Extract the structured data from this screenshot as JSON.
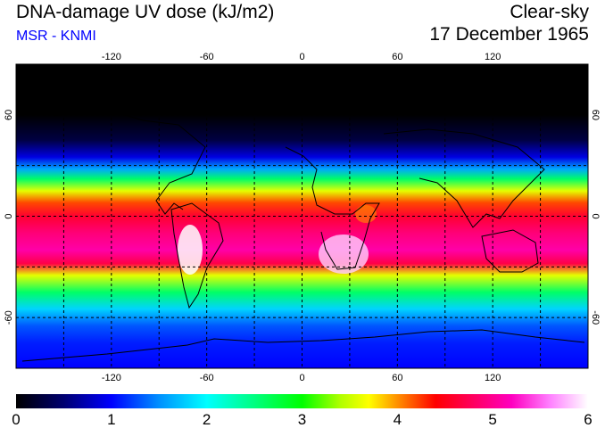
{
  "title": "DNA-damage UV dose (kJ/m2)",
  "subtitle": "MSR - KNMI",
  "subtitle_color": "#0000ff",
  "sky_condition": "Clear-sky",
  "date": "17 December 1965",
  "map": {
    "lon_ticks": [
      -120,
      -60,
      0,
      60,
      120
    ],
    "lat_ticks": [
      60,
      0,
      -60
    ],
    "lon_range": [
      -180,
      180
    ],
    "lat_range": [
      -90,
      90
    ],
    "grid_lons": [
      -150,
      -120,
      -90,
      -60,
      -30,
      0,
      30,
      60,
      90,
      120,
      150
    ],
    "grid_lats": [
      -60,
      -30,
      0,
      30,
      60
    ],
    "dose_by_latitude": [
      {
        "lat": 90,
        "dose": 0.0
      },
      {
        "lat": 60,
        "dose": 0.0
      },
      {
        "lat": 45,
        "dose": 0.3
      },
      {
        "lat": 35,
        "dose": 0.9
      },
      {
        "lat": 28,
        "dose": 1.6
      },
      {
        "lat": 22,
        "dose": 2.6
      },
      {
        "lat": 15,
        "dose": 3.6
      },
      {
        "lat": 8,
        "dose": 4.2
      },
      {
        "lat": 0,
        "dose": 4.6
      },
      {
        "lat": -10,
        "dose": 4.9
      },
      {
        "lat": -20,
        "dose": 5.1
      },
      {
        "lat": -28,
        "dose": 4.7
      },
      {
        "lat": -35,
        "dose": 3.6
      },
      {
        "lat": -45,
        "dose": 2.6
      },
      {
        "lat": -55,
        "dose": 1.8
      },
      {
        "lat": -65,
        "dose": 1.3
      },
      {
        "lat": -75,
        "dose": 1.1
      },
      {
        "lat": -90,
        "dose": 1.0
      }
    ]
  },
  "colorbar": {
    "ticks": [
      "0",
      "1",
      "2",
      "3",
      "4",
      "5",
      "6"
    ],
    "min": 0,
    "max": 6,
    "stops": [
      {
        "v": 0.0,
        "c": "#000000"
      },
      {
        "v": 0.5,
        "c": "#000070"
      },
      {
        "v": 1.0,
        "c": "#0000ff"
      },
      {
        "v": 1.5,
        "c": "#0090ff"
      },
      {
        "v": 2.0,
        "c": "#00ffff"
      },
      {
        "v": 2.5,
        "c": "#00ff80"
      },
      {
        "v": 3.0,
        "c": "#00ff00"
      },
      {
        "v": 3.4,
        "c": "#b0ff00"
      },
      {
        "v": 3.7,
        "c": "#ffff00"
      },
      {
        "v": 4.0,
        "c": "#ff9000"
      },
      {
        "v": 4.4,
        "c": "#ff0000"
      },
      {
        "v": 4.8,
        "c": "#ff0060"
      },
      {
        "v": 5.2,
        "c": "#ff00c0"
      },
      {
        "v": 5.6,
        "c": "#ff80ff"
      },
      {
        "v": 6.0,
        "c": "#ffffff"
      }
    ]
  }
}
